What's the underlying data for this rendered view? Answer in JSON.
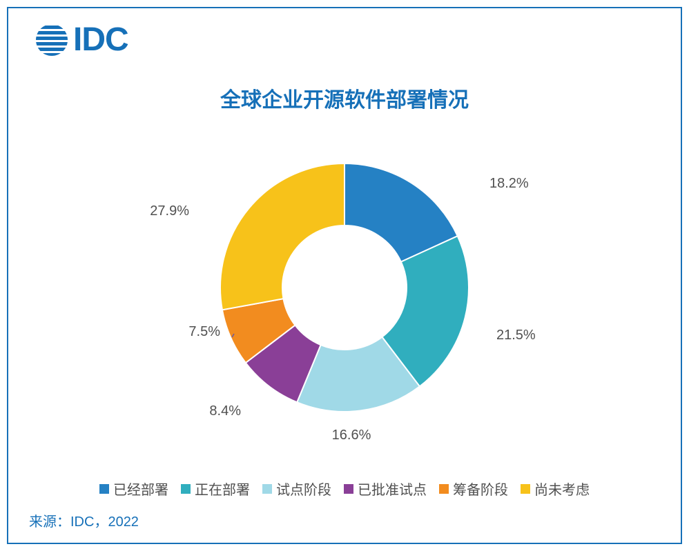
{
  "logo": {
    "text": "IDC",
    "brand_color": "#1670b8"
  },
  "chart": {
    "type": "donut",
    "title": "全球企业开源软件部署情况",
    "title_color": "#1670b8",
    "title_fontsize": 30,
    "background_color": "#ffffff",
    "frame_border_color": "#1670b8",
    "inner_radius_ratio": 0.5,
    "outer_radius": 180,
    "label_fontsize": 20,
    "label_color": "#505050",
    "start_angle_deg": 0,
    "direction": "clockwise",
    "slices": [
      {
        "label": "已经部署",
        "value": 18.2,
        "color": "#2581c4",
        "display": "18.2%"
      },
      {
        "label": "正在部署",
        "value": 21.5,
        "color": "#30aebe",
        "display": "21.5%"
      },
      {
        "label": "试点阶段",
        "value": 16.6,
        "color": "#a0d9e7",
        "display": "16.6%"
      },
      {
        "label": "已批准试点",
        "value": 8.4,
        "color": "#8a3f97",
        "display": "8.4%"
      },
      {
        "label": "筹备阶段",
        "value": 7.5,
        "color": "#f28c1f",
        "display": "7.5%"
      },
      {
        "label": "尚未考虑",
        "value": 27.9,
        "color": "#f7c21a",
        "display": "27.9%"
      }
    ],
    "leader_line_color": "#6b5aa0",
    "leader_line_width": 1.5
  },
  "legend": {
    "fontsize": 20,
    "text_color": "#505050",
    "marker_prefix": "▪",
    "items": [
      {
        "label": "已经部署",
        "color": "#2581c4"
      },
      {
        "label": "正在部署",
        "color": "#30aebe"
      },
      {
        "label": "试点阶段",
        "color": "#a0d9e7"
      },
      {
        "label": "已批准试点",
        "color": "#8a3f97"
      },
      {
        "label": "筹备阶段",
        "color": "#f28c1f"
      },
      {
        "label": "尚未考虑",
        "color": "#f7c21a"
      }
    ]
  },
  "source": {
    "text": "来源：IDC，2022",
    "color": "#1670b8",
    "fontsize": 20
  }
}
